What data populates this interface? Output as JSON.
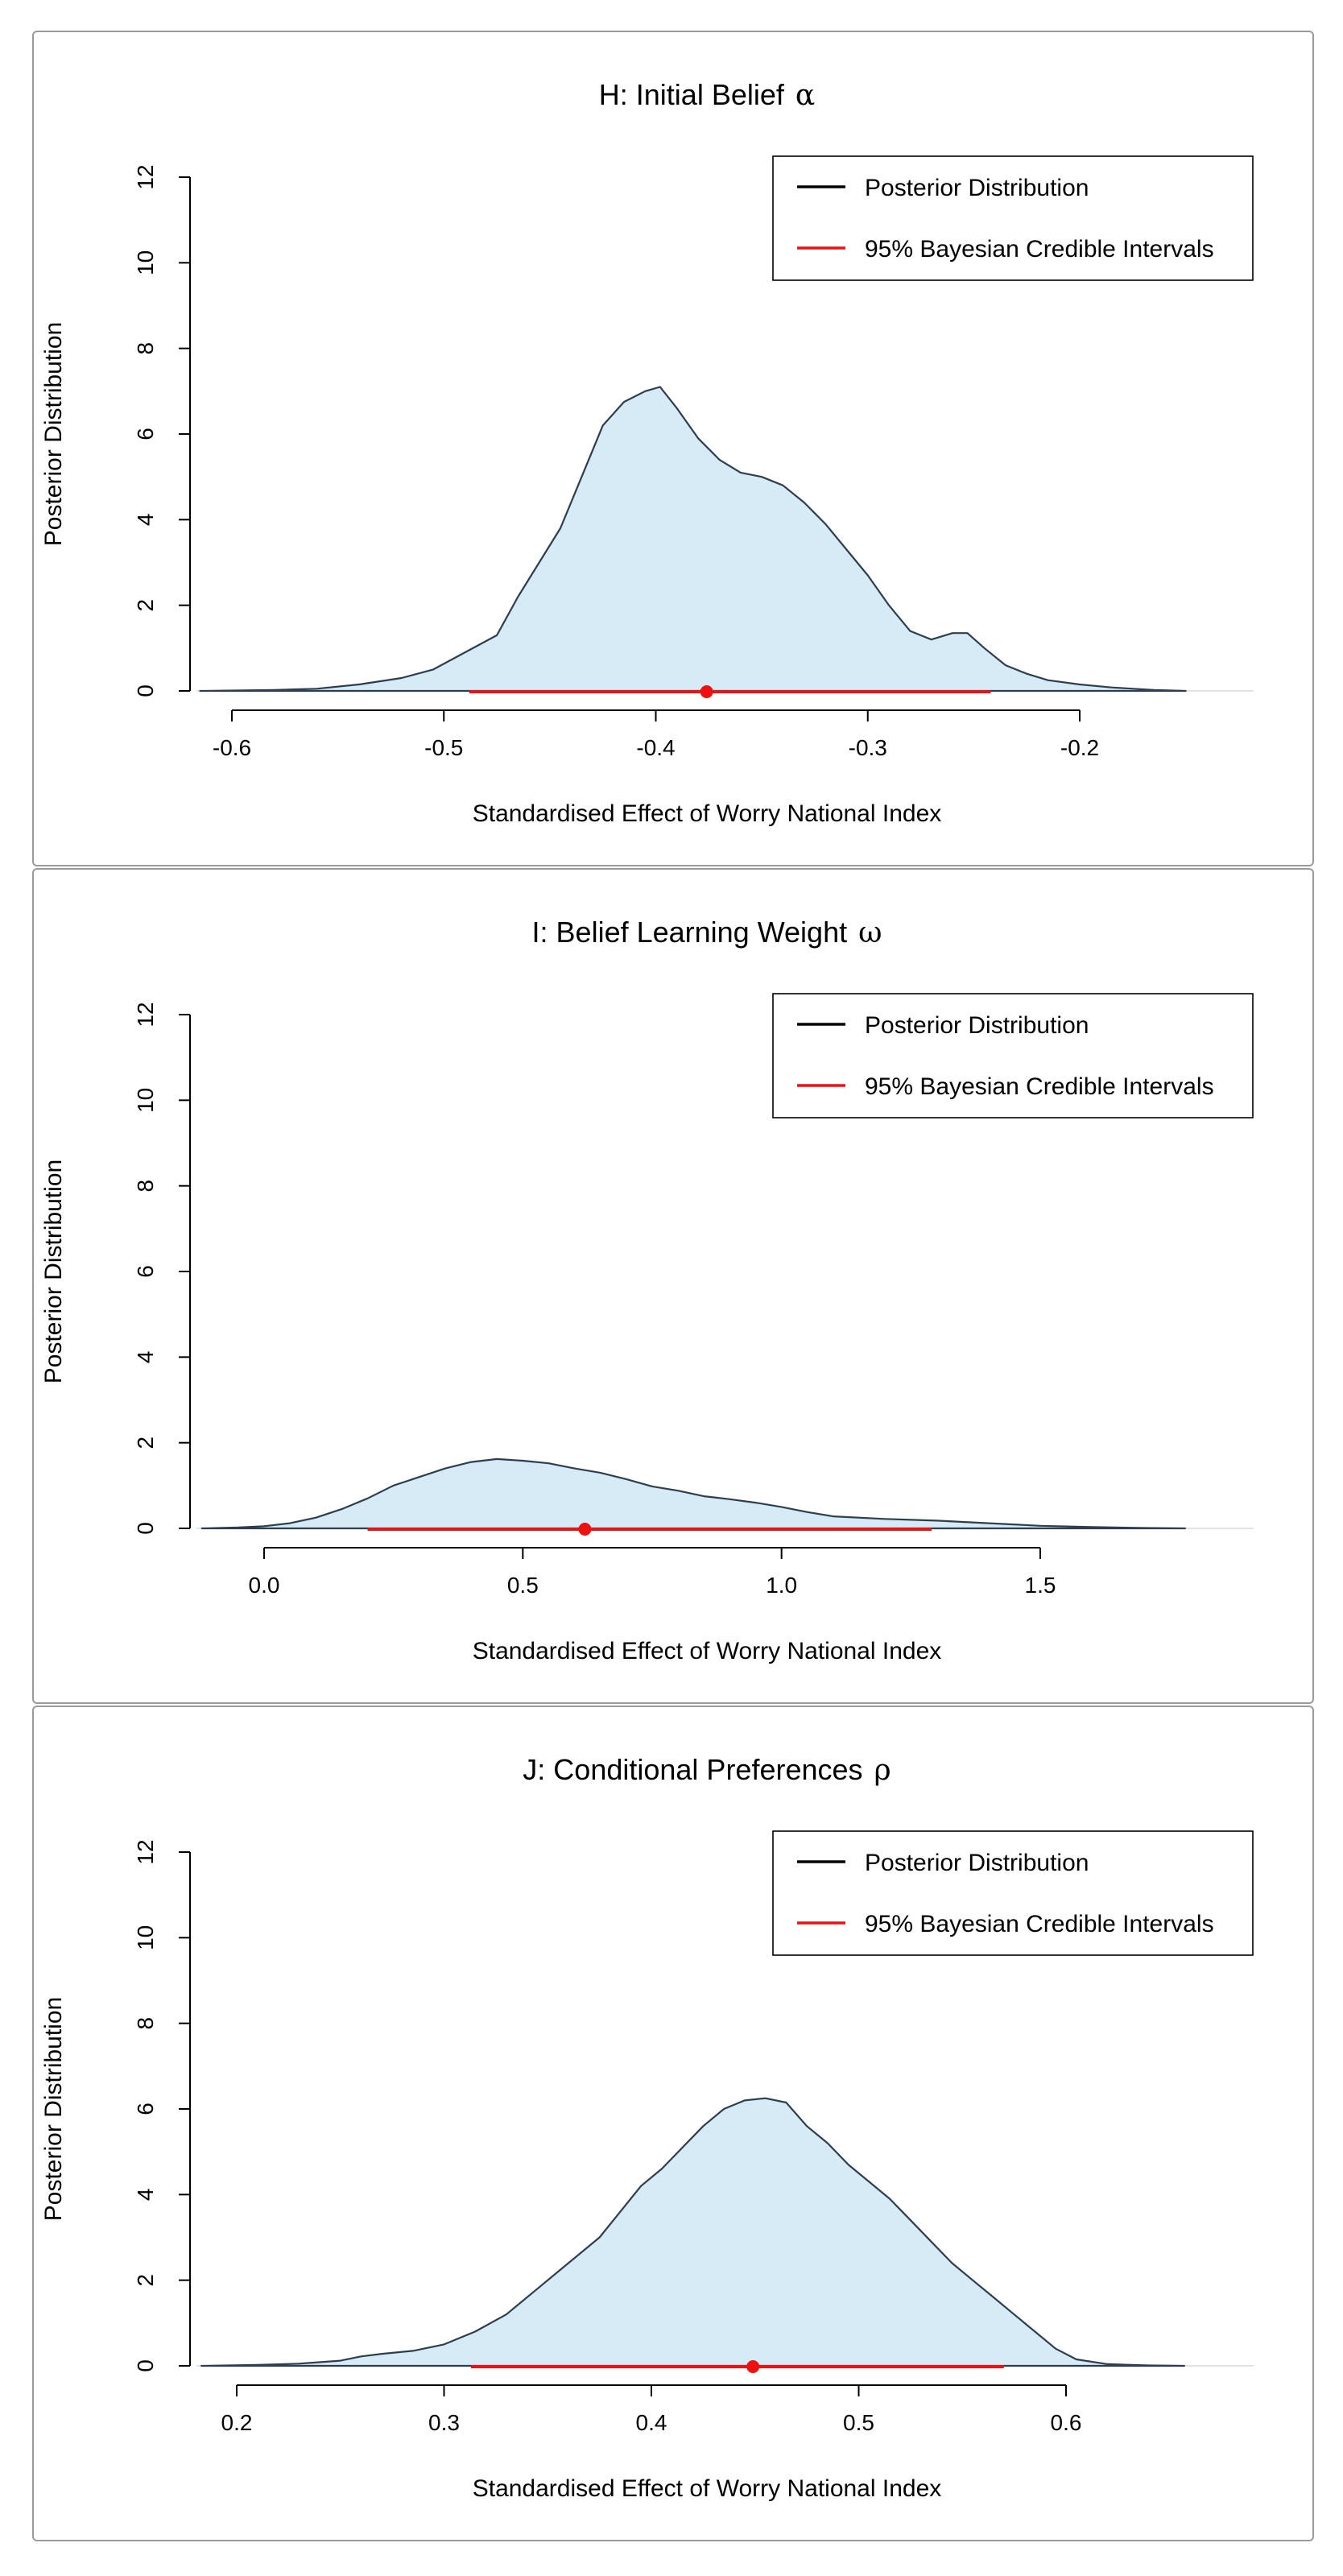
{
  "chart_data": [
    {
      "type": "area",
      "title": "H: Initial Belief",
      "title_symbol": "α",
      "xlabel": "Standardised Effect of Worry National Index",
      "ylabel": "Posterior Distribution",
      "xlim": [
        -0.6,
        -0.2
      ],
      "ylim": [
        0,
        12
      ],
      "xticks": [
        -0.6,
        -0.5,
        -0.4,
        -0.3,
        -0.2
      ],
      "xtick_labels": [
        "-0.6",
        "-0.5",
        "-0.4",
        "-0.3",
        "-0.2"
      ],
      "yticks": [
        0,
        2,
        4,
        6,
        8,
        10,
        12
      ],
      "ytick_labels": [
        "0",
        "2",
        "4",
        "6",
        "8",
        "10",
        "12"
      ],
      "legend_position": "top-right",
      "legend": [
        "Posterior Distribution",
        "95% Bayesian Credible Intervals"
      ],
      "series": [
        {
          "x": [
            -0.615,
            -0.58,
            -0.56,
            -0.54,
            -0.52,
            -0.505,
            -0.49,
            -0.475,
            -0.465,
            -0.455,
            -0.445,
            -0.435,
            -0.425,
            -0.415,
            -0.405,
            -0.398,
            -0.39,
            -0.38,
            -0.37,
            -0.36,
            -0.35,
            -0.34,
            -0.33,
            -0.32,
            -0.31,
            -0.3,
            -0.29,
            -0.28,
            -0.27,
            -0.26,
            -0.253,
            -0.245,
            -0.235,
            -0.225,
            -0.215,
            -0.2,
            -0.185,
            -0.165,
            -0.15
          ],
          "y": [
            0,
            0.02,
            0.05,
            0.15,
            0.3,
            0.5,
            0.9,
            1.3,
            2.2,
            3.0,
            3.8,
            5.0,
            6.2,
            6.75,
            7.0,
            7.1,
            6.6,
            5.9,
            5.4,
            5.1,
            5.0,
            4.8,
            4.4,
            3.9,
            3.3,
            2.7,
            2.0,
            1.4,
            1.2,
            1.35,
            1.35,
            1.0,
            0.6,
            0.4,
            0.25,
            0.15,
            0.08,
            0.02,
            0
          ]
        }
      ],
      "credible_interval": {
        "lower": -0.488,
        "upper": -0.242,
        "point": -0.376
      }
    },
    {
      "type": "area",
      "title": "I: Belief Learning Weight",
      "title_symbol": "ω",
      "xlabel": "Standardised Effect of Worry National Index",
      "ylabel": "Posterior Distribution",
      "xlim": [
        0.0,
        1.5
      ],
      "ylim": [
        0,
        12
      ],
      "xticks": [
        0.0,
        0.5,
        1.0,
        1.5
      ],
      "xtick_labels": [
        "0.0",
        "0.5",
        "1.0",
        "1.5"
      ],
      "yticks": [
        0,
        2,
        4,
        6,
        8,
        10,
        12
      ],
      "ytick_labels": [
        "0",
        "2",
        "4",
        "6",
        "8",
        "10",
        "12"
      ],
      "legend_position": "top-right",
      "legend": [
        "Posterior Distribution",
        "95% Bayesian Credible Intervals"
      ],
      "series": [
        {
          "x": [
            -0.12,
            -0.05,
            0.0,
            0.05,
            0.1,
            0.15,
            0.2,
            0.25,
            0.3,
            0.35,
            0.4,
            0.45,
            0.5,
            0.55,
            0.6,
            0.65,
            0.7,
            0.75,
            0.8,
            0.85,
            0.9,
            0.95,
            1.0,
            1.05,
            1.1,
            1.2,
            1.3,
            1.4,
            1.5,
            1.6,
            1.7,
            1.78
          ],
          "y": [
            0,
            0.02,
            0.05,
            0.12,
            0.25,
            0.45,
            0.7,
            1.0,
            1.2,
            1.4,
            1.55,
            1.62,
            1.58,
            1.52,
            1.4,
            1.3,
            1.15,
            0.98,
            0.88,
            0.75,
            0.68,
            0.6,
            0.5,
            0.38,
            0.28,
            0.22,
            0.18,
            0.12,
            0.06,
            0.03,
            0.01,
            0
          ]
        }
      ],
      "credible_interval": {
        "lower": 0.2,
        "upper": 1.29,
        "point": 0.62
      }
    },
    {
      "type": "area",
      "title": "J: Conditional Preferences",
      "title_symbol": "ρ",
      "xlabel": "Standardised Effect of Worry National Index",
      "ylabel": "Posterior Distribution",
      "xlim": [
        0.2,
        0.6
      ],
      "ylim": [
        0,
        12
      ],
      "xticks": [
        0.2,
        0.3,
        0.4,
        0.5,
        0.6
      ],
      "xtick_labels": [
        "0.2",
        "0.3",
        "0.4",
        "0.5",
        "0.6"
      ],
      "yticks": [
        0,
        2,
        4,
        6,
        8,
        10,
        12
      ],
      "ytick_labels": [
        "0",
        "2",
        "4",
        "6",
        "8",
        "10",
        "12"
      ],
      "legend_position": "top-right",
      "legend": [
        "Posterior Distribution",
        "95% Bayesian Credible Intervals"
      ],
      "series": [
        {
          "x": [
            0.183,
            0.21,
            0.23,
            0.25,
            0.26,
            0.27,
            0.285,
            0.3,
            0.315,
            0.33,
            0.345,
            0.36,
            0.375,
            0.385,
            0.395,
            0.405,
            0.415,
            0.425,
            0.435,
            0.445,
            0.455,
            0.465,
            0.475,
            0.485,
            0.495,
            0.505,
            0.515,
            0.525,
            0.535,
            0.545,
            0.555,
            0.565,
            0.575,
            0.585,
            0.595,
            0.605,
            0.62,
            0.64,
            0.657
          ],
          "y": [
            0,
            0.02,
            0.05,
            0.12,
            0.22,
            0.28,
            0.35,
            0.5,
            0.8,
            1.2,
            1.8,
            2.4,
            3.0,
            3.6,
            4.2,
            4.6,
            5.1,
            5.6,
            6.0,
            6.2,
            6.25,
            6.15,
            5.6,
            5.2,
            4.7,
            4.3,
            3.9,
            3.4,
            2.9,
            2.4,
            2.0,
            1.6,
            1.2,
            0.8,
            0.4,
            0.15,
            0.04,
            0.01,
            0
          ]
        }
      ],
      "credible_interval": {
        "lower": 0.313,
        "upper": 0.57,
        "point": 0.449
      }
    }
  ],
  "colors": {
    "fill": "#d6ebf6",
    "outline": "#2c3e50",
    "interval": "#ee1111",
    "axis": "#000000",
    "panel_border": "#9a9a9a"
  }
}
